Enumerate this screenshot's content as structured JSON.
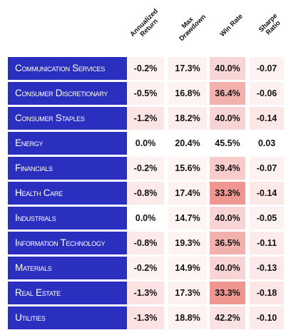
{
  "chart_data": {
    "type": "table",
    "columns": [
      {
        "label_lines": [
          "Annualized",
          "Return"
        ]
      },
      {
        "label_lines": [
          "Max",
          "Drawdown"
        ]
      },
      {
        "label_lines": [
          "Win Rate"
        ]
      },
      {
        "label_lines": [
          "Sharpe",
          "Ratio"
        ]
      }
    ],
    "rows": [
      {
        "sector": "Communication Services",
        "values": [
          "-0.2%",
          "17.3%",
          "40.0%",
          "-0.07"
        ],
        "colors": [
          "#fdf1f1",
          "#fdf1f1",
          "#f9d4d4",
          "#fdf1f1"
        ]
      },
      {
        "sector": "Consumer Discretionary",
        "values": [
          "-0.5%",
          "16.8%",
          "36.4%",
          "-0.06"
        ],
        "colors": [
          "#fdf1f1",
          "#fdf3f3",
          "#f3b1ae",
          "#fdf1f1"
        ]
      },
      {
        "sector": "Consumer Staples",
        "values": [
          "-1.2%",
          "18.2%",
          "40.0%",
          "-0.14"
        ],
        "colors": [
          "#fce4e4",
          "#fdeeee",
          "#f9d4d4",
          "#fde8e8"
        ]
      },
      {
        "sector": "Energy",
        "values": [
          "0.0%",
          "20.4%",
          "45.5%",
          "0.03"
        ],
        "colors": [
          "#ffffff",
          "#ffffff",
          "#ffffff",
          "#ffffff"
        ]
      },
      {
        "sector": "Financials",
        "values": [
          "-0.2%",
          "15.6%",
          "39.4%",
          "-0.07"
        ],
        "colors": [
          "#fdf1f1",
          "#fdf4f4",
          "#f7cccb",
          "#fdf1f1"
        ]
      },
      {
        "sector": "Health Care",
        "values": [
          "-0.8%",
          "17.4%",
          "33.3%",
          "-0.14"
        ],
        "colors": [
          "#fceaea",
          "#fdf1f1",
          "#ef9691",
          "#fde8e8"
        ]
      },
      {
        "sector": "Industrials",
        "values": [
          "0.0%",
          "14.7%",
          "40.0%",
          "-0.05"
        ],
        "colors": [
          "#ffffff",
          "#fdf4f4",
          "#f9d4d4",
          "#fdf2f2"
        ]
      },
      {
        "sector": "Information Technology",
        "values": [
          "-0.8%",
          "19.3%",
          "36.5%",
          "-0.11"
        ],
        "colors": [
          "#fceaea",
          "#fdf3f3",
          "#f3b1ae",
          "#fdeaea"
        ]
      },
      {
        "sector": "Materials",
        "values": [
          "-0.2%",
          "14.9%",
          "40.0%",
          "-0.13"
        ],
        "colors": [
          "#fdf1f1",
          "#fdf4f4",
          "#f9d4d4",
          "#fde9e9"
        ]
      },
      {
        "sector": "Real Estate",
        "values": [
          "-1.3%",
          "17.3%",
          "33.3%",
          "-0.18"
        ],
        "colors": [
          "#fce2e2",
          "#fdf1f1",
          "#ef9691",
          "#fce5e5"
        ]
      },
      {
        "sector": "Utilities",
        "values": [
          "-1.3%",
          "18.8%",
          "42.2%",
          "-0.10"
        ],
        "colors": [
          "#fce2e2",
          "#fdf1f1",
          "#fbe2e2",
          "#fdeaea"
        ]
      }
    ],
    "colors": {
      "sector_background": "#2b2fc0",
      "sector_text": "#ffffff",
      "value_text": "#111111"
    }
  }
}
